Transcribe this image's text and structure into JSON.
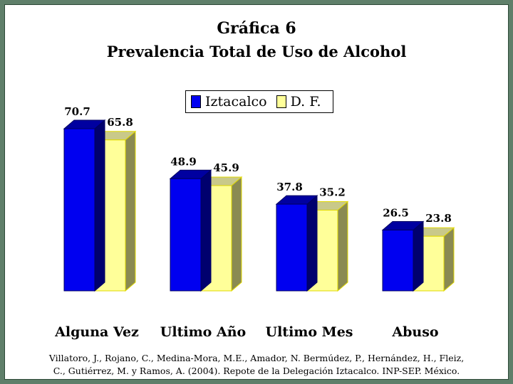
{
  "title": "Gráfica 6",
  "subtitle": "Prevalencia Total de Uso de Alcohol",
  "colors": {
    "iztacalco_front": "#0000f0",
    "iztacalco_top": "#0000a0",
    "iztacalco_side": "#00006e",
    "df_front": "#ffff99",
    "df_top": "#c9c98a",
    "df_side": "#8a8a52",
    "bar_edge": "#e0d800"
  },
  "chart_data": {
    "type": "bar",
    "title": "Gráfica 6",
    "subtitle": "Prevalencia Total de Uso de Alcohol",
    "categories": [
      "Alguna Vez",
      "Ultimo Año",
      "Ultimo Mes",
      "Abuso"
    ],
    "series": [
      {
        "name": "Iztacalco",
        "values": [
          70.7,
          48.9,
          37.8,
          26.5
        ]
      },
      {
        "name": "D. F.",
        "values": [
          65.8,
          45.9,
          35.2,
          23.8
        ]
      }
    ],
    "ylim": [
      0,
      70.7
    ],
    "grid": false,
    "legend": "top-center",
    "style": "3d"
  },
  "citation": {
    "line1": "Villatoro, J., Rojano, C., Medina-Mora, M.E., Amador, N. Bermúdez, P., Hernández, H., Fleiz,",
    "line2": "C., Gutiérrez, M. y Ramos, A. (2004). Repote de la Delegación Iztacalco. INP-SEP. México."
  }
}
